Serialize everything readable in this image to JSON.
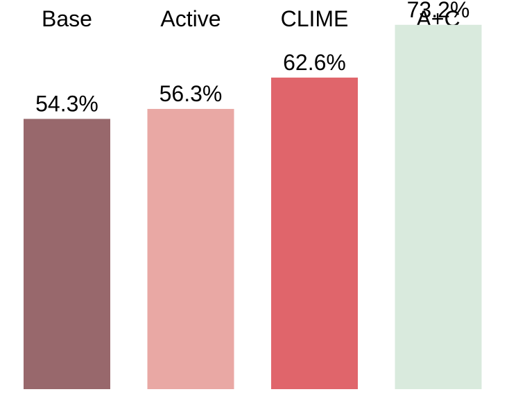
{
  "chart_data": {
    "type": "bar",
    "categories": [
      "Base",
      "Active",
      "CLIME",
      "A+C"
    ],
    "values": [
      54.3,
      56.3,
      62.6,
      73.2
    ],
    "value_labels": [
      "54.3%",
      "56.3%",
      "62.6%",
      "73.2%"
    ],
    "colors": [
      "#98686c",
      "#e9a8a4",
      "#e0656b",
      "#d9eadd"
    ],
    "title": "",
    "xlabel": "",
    "ylabel": "",
    "ylim": [
      0,
      100
    ],
    "grid": false,
    "category_label_position": "top"
  }
}
